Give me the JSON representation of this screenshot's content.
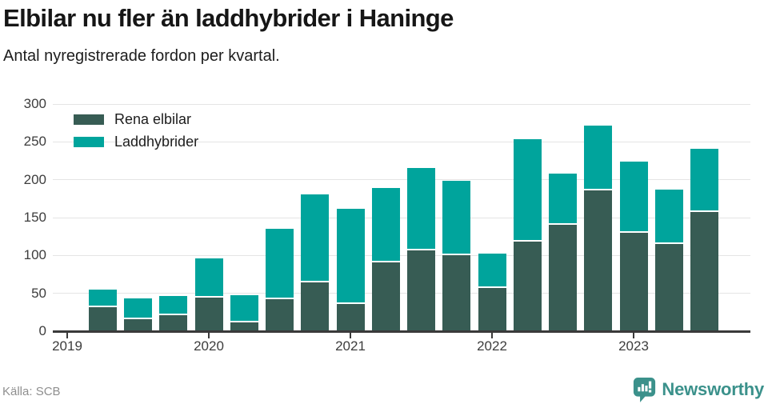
{
  "header": {
    "title": "Elbilar nu fler än laddhybrider i Haninge",
    "subtitle": "Antal nyregistrerade fordon per kvartal."
  },
  "legend": [
    {
      "label": "Rena elbilar",
      "color": "#375c54"
    },
    {
      "label": "Laddhybrider",
      "color": "#00a49c"
    }
  ],
  "footer": {
    "source": "Källa: SCB",
    "brand": "Newsworthy",
    "brand_color": "#3b918b",
    "brand_icon": "newsworthy-speech-bubble-bar-chart-icon"
  },
  "chart_data": {
    "type": "bar",
    "stacked": true,
    "title": "Elbilar nu fler än laddhybrider i Haninge",
    "subtitle": "Antal nyregistrerade fordon per kvartal.",
    "categories": [
      "2019 Q2",
      "2019 Q3",
      "2019 Q4",
      "2020 Q1",
      "2020 Q2",
      "2020 Q3",
      "2020 Q4",
      "2021 Q1",
      "2021 Q2",
      "2021 Q3",
      "2021 Q4",
      "2022 Q1",
      "2022 Q2",
      "2022 Q3",
      "2022 Q4",
      "2023 Q1",
      "2023 Q2",
      "2023 Q3"
    ],
    "series": [
      {
        "name": "Rena elbilar",
        "color": "#375c54",
        "values": [
          32,
          16,
          21,
          44,
          12,
          42,
          64,
          36,
          91,
          107,
          100,
          57,
          118,
          140,
          186,
          130,
          115,
          157
        ]
      },
      {
        "name": "Laddhybrider",
        "color": "#00a49c",
        "values": [
          23,
          27,
          26,
          52,
          36,
          93,
          117,
          126,
          98,
          109,
          99,
          45,
          136,
          68,
          86,
          94,
          72,
          84
        ]
      }
    ],
    "totals": [
      55,
      43,
      47,
      96,
      48,
      135,
      181,
      162,
      189,
      216,
      199,
      102,
      254,
      208,
      272,
      224,
      187,
      241
    ],
    "x_year_labels": [
      "2019",
      "2020",
      "2021",
      "2022",
      "2023"
    ],
    "y_ticks": [
      0,
      50,
      100,
      150,
      200,
      250,
      300
    ],
    "ylim": [
      0,
      300
    ],
    "xlabel": "",
    "ylabel": "",
    "grid": true,
    "legend_position": "top-left",
    "gridline_color": "#e4e4e4",
    "axis_color": "#3a3a3a"
  }
}
